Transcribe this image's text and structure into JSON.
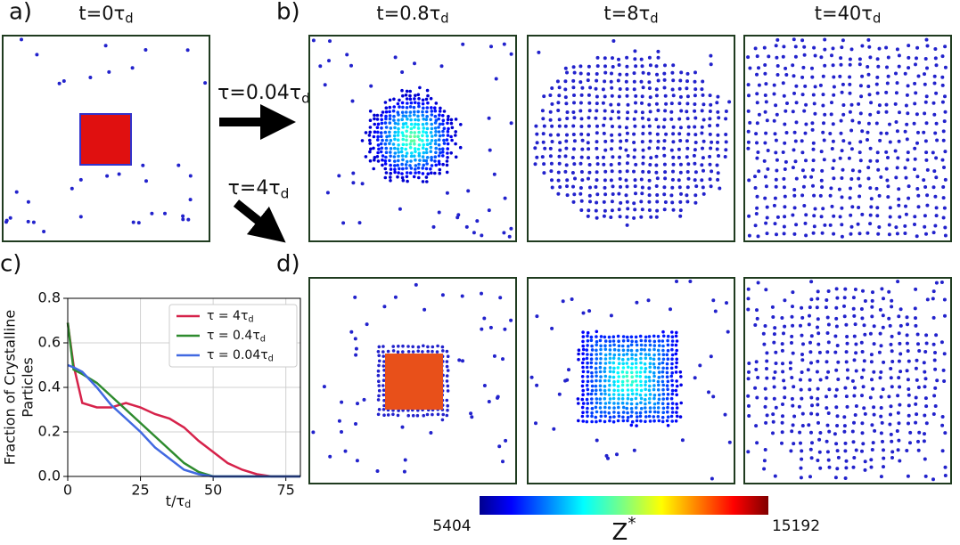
{
  "panel_labels": [
    "a)",
    "b)",
    "c)",
    "d)"
  ],
  "time_labels": [
    {
      "text": "t=0τ",
      "sub": "d"
    },
    {
      "text": "t=0.8τ",
      "sub": "d"
    },
    {
      "text": "t=8τ",
      "sub": "d"
    },
    {
      "text": "t=40τ",
      "sub": "d"
    }
  ],
  "arrow_labels": [
    {
      "text": "τ=0.04τ",
      "sub": "d"
    },
    {
      "text": "τ=4τ",
      "sub": "d"
    }
  ],
  "colorbar": {
    "min": 5404,
    "max": 15192,
    "label": "Z",
    "label_sup": "*"
  },
  "chart_data": {
    "type": "line",
    "ylabel": [
      "Fraction of Crystalline",
      "Particles"
    ],
    "xlabel": {
      "text": "t/τ",
      "sub": "d"
    },
    "x": [
      0,
      2,
      5,
      10,
      15,
      20,
      25,
      30,
      35,
      40,
      45,
      50,
      55,
      60,
      65,
      70,
      75,
      80
    ],
    "series": [
      {
        "name": "τ = 4τ",
        "name_sub": "d",
        "color": "#d6224a",
        "values": [
          0.69,
          0.5,
          0.33,
          0.31,
          0.31,
          0.33,
          0.31,
          0.28,
          0.26,
          0.22,
          0.16,
          0.11,
          0.06,
          0.03,
          0.01,
          0,
          0,
          0
        ]
      },
      {
        "name": "τ = 0.4τ",
        "name_sub": "d",
        "color": "#2e8b2e",
        "values": [
          0.69,
          0.48,
          0.46,
          0.42,
          0.36,
          0.3,
          0.24,
          0.18,
          0.12,
          0.06,
          0.02,
          0,
          0,
          0,
          0,
          0,
          0,
          0
        ]
      },
      {
        "name": "τ = 0.04τ",
        "name_sub": "d",
        "color": "#4169e1",
        "values": [
          0.5,
          0.49,
          0.47,
          0.4,
          0.32,
          0.26,
          0.2,
          0.13,
          0.08,
          0.03,
          0.01,
          0,
          0,
          0,
          0,
          0,
          0,
          0
        ]
      }
    ],
    "xlim": [
      0,
      80
    ],
    "xticks": [
      0,
      25,
      50,
      75
    ],
    "ylim": [
      0,
      0.8
    ],
    "yticks": [
      {
        "value": 0,
        "label": "0.0"
      },
      0.2,
      0.4,
      0.6,
      0.8
    ],
    "grid": true,
    "legend": "upper right"
  }
}
